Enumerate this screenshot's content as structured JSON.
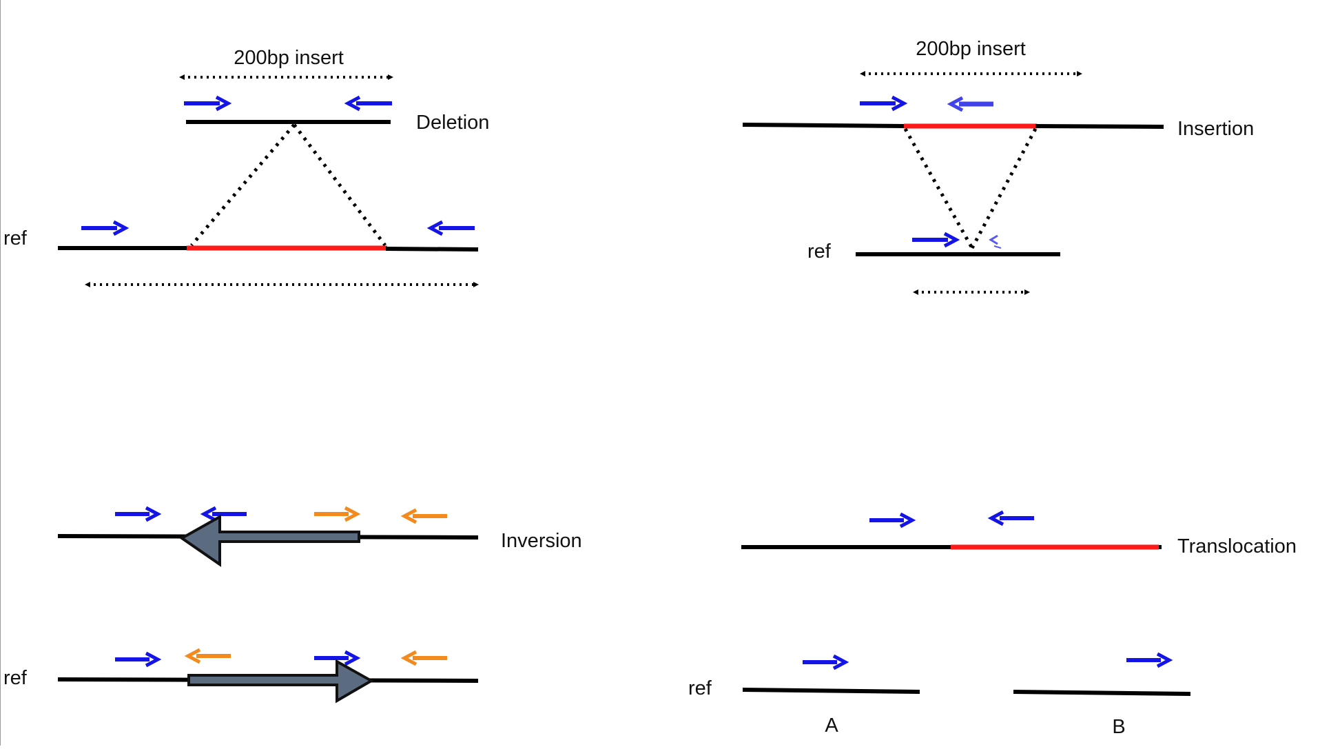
{
  "colors": {
    "forward_read": "#1414e6",
    "reverse_read": "#1414e6",
    "alt_read": "#f28a1e",
    "sv_segment": "#ff1a1a",
    "genome": "#000000",
    "inverted_block": "#5b6b80"
  },
  "deletion": {
    "insert_label": "200bp insert",
    "title": "Deletion",
    "ref_label": "ref"
  },
  "insertion": {
    "insert_label": "200bp insert",
    "title": "Insertion",
    "ref_label": "ref"
  },
  "inversion": {
    "title": "Inversion",
    "ref_label": "ref"
  },
  "translocation": {
    "title": "Translocation",
    "ref_label": "ref",
    "segment_a": "A",
    "segment_b": "B"
  }
}
